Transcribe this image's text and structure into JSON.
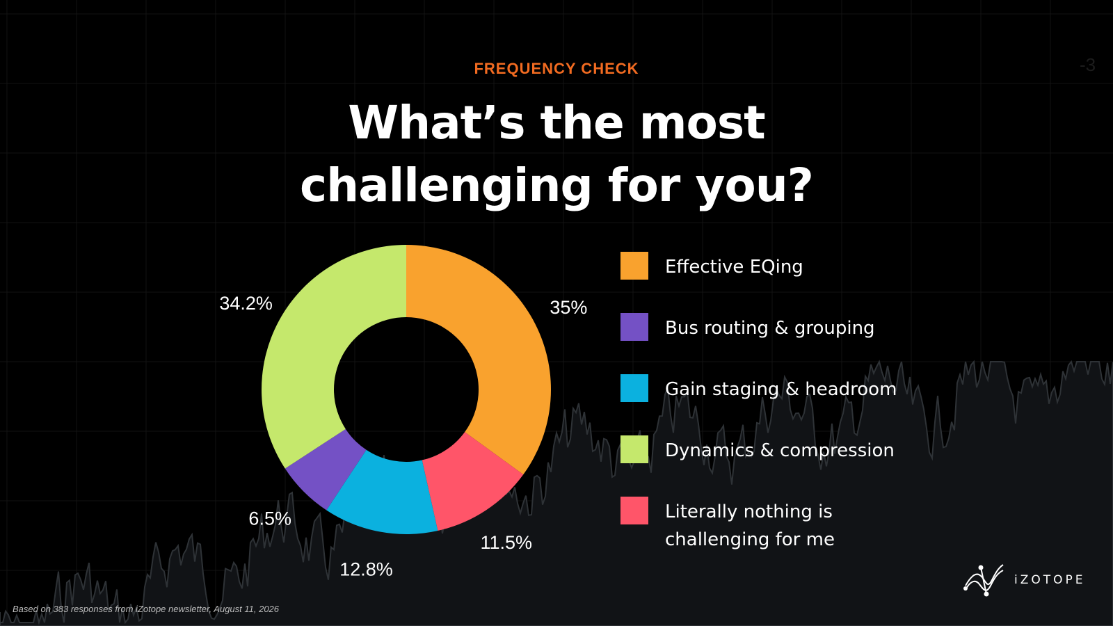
{
  "header": {
    "eyebrow": "FREQUENCY CHECK",
    "title_line1": "What’s the most",
    "title_line2": "challenging for you?"
  },
  "chart_data": {
    "type": "pie",
    "style": "donut",
    "categories": [
      "Effective EQing",
      "Literally nothing is challenging for me",
      "Gain staging & headroom",
      "Bus routing & grouping",
      "Dynamics & compression"
    ],
    "values": [
      35,
      11.5,
      12.8,
      6.5,
      34.2
    ],
    "value_labels": [
      "35%",
      "11.5%",
      "12.8%",
      "6.5%",
      "34.2%"
    ],
    "colors": [
      "#f9a22e",
      "#ff5569",
      "#0bb1df",
      "#7451c5",
      "#c5e86c"
    ],
    "legend_placement": "right"
  },
  "legend": {
    "items": [
      {
        "label": "Effective EQing",
        "color": "#f9a22e"
      },
      {
        "label": "Bus routing & grouping",
        "color": "#7451c5"
      },
      {
        "label": "Gain staging & headroom",
        "color": "#0bb1df"
      },
      {
        "label": "Dynamics & compression",
        "color": "#c5e86c"
      },
      {
        "label_line1": "Literally nothing is",
        "label_line2": "challenging for me",
        "color": "#ff5569"
      }
    ]
  },
  "footnote": "Based on 383 responses from iZotope newsletter, August 11, 2026",
  "brand": {
    "name": "iZOTOPE",
    "logo_icon": "izotope-logo-icon"
  },
  "corner_mark": "-3"
}
